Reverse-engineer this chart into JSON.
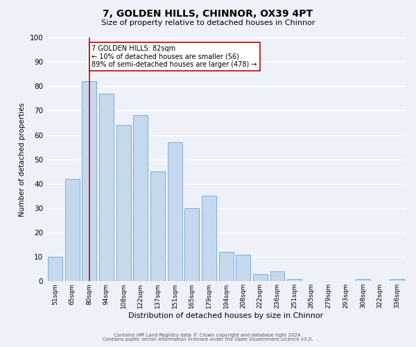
{
  "title": "7, GOLDEN HILLS, CHINNOR, OX39 4PT",
  "subtitle": "Size of property relative to detached houses in Chinnor",
  "xlabel": "Distribution of detached houses by size in Chinnor",
  "ylabel": "Number of detached properties",
  "bar_labels": [
    "51sqm",
    "65sqm",
    "80sqm",
    "94sqm",
    "108sqm",
    "122sqm",
    "137sqm",
    "151sqm",
    "165sqm",
    "179sqm",
    "194sqm",
    "208sqm",
    "222sqm",
    "236sqm",
    "251sqm",
    "265sqm",
    "279sqm",
    "293sqm",
    "308sqm",
    "322sqm",
    "336sqm"
  ],
  "bar_values": [
    10,
    42,
    82,
    77,
    64,
    68,
    45,
    57,
    30,
    35,
    12,
    11,
    3,
    4,
    1,
    0,
    0,
    0,
    1,
    0,
    1
  ],
  "bar_color": "#c5d8ee",
  "bar_edge_color": "#7aadd4",
  "ylim": [
    0,
    100
  ],
  "yticks": [
    0,
    10,
    20,
    30,
    40,
    50,
    60,
    70,
    80,
    90,
    100
  ],
  "vline_x_index": 2,
  "vline_color": "#cc0000",
  "annotation_box_text": "7 GOLDEN HILLS: 82sqm\n← 10% of detached houses are smaller (56)\n89% of semi-detached houses are larger (478) →",
  "annotation_box_color": "#ffffff",
  "annotation_box_edge_color": "#cc0000",
  "bg_color": "#eef2f8",
  "plot_bg_color": "#eef2f8",
  "grid_color": "#ffffff",
  "footer_line1": "Contains HM Land Registry data © Crown copyright and database right 2024.",
  "footer_line2": "Contains public sector information licensed under the Open Government Licence v3.0."
}
